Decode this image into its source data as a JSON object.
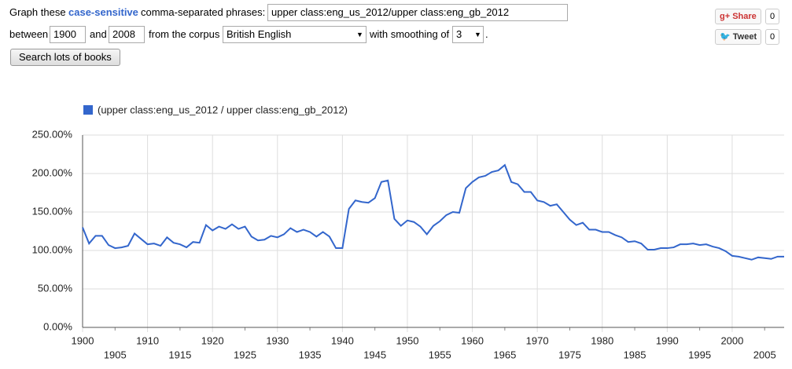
{
  "form": {
    "graph_these": "Graph these",
    "case_sensitive": "case-sensitive",
    "phrases_label": "comma-separated phrases:",
    "query": "upper class:eng_us_2012/upper class:eng_gb_2012",
    "between": "between",
    "start_year": "1900",
    "and": "and",
    "end_year": "2008",
    "corpus_label": "from the corpus",
    "corpus": "British English",
    "smoothing_label": "with smoothing of",
    "smoothing": "3",
    "period": ".",
    "search_button": "Search lots of books"
  },
  "social": {
    "share": "Share",
    "share_count": "0",
    "tweet": "Tweet",
    "tweet_count": "0"
  },
  "chart_data": {
    "type": "line",
    "x": [
      1900,
      1901,
      1902,
      1903,
      1904,
      1905,
      1906,
      1907,
      1908,
      1909,
      1910,
      1911,
      1912,
      1913,
      1914,
      1915,
      1916,
      1917,
      1918,
      1919,
      1920,
      1921,
      1922,
      1923,
      1924,
      1925,
      1926,
      1927,
      1928,
      1929,
      1930,
      1931,
      1932,
      1933,
      1934,
      1935,
      1936,
      1937,
      1938,
      1939,
      1940,
      1941,
      1942,
      1943,
      1944,
      1945,
      1946,
      1947,
      1948,
      1949,
      1950,
      1951,
      1952,
      1953,
      1954,
      1955,
      1956,
      1957,
      1958,
      1959,
      1960,
      1961,
      1962,
      1963,
      1964,
      1965,
      1966,
      1967,
      1968,
      1969,
      1970,
      1971,
      1972,
      1973,
      1974,
      1975,
      1976,
      1977,
      1978,
      1979,
      1980,
      1981,
      1982,
      1983,
      1984,
      1985,
      1986,
      1987,
      1988,
      1989,
      1990,
      1991,
      1992,
      1993,
      1994,
      1995,
      1996,
      1997,
      1998,
      1999,
      2000,
      2001,
      2002,
      2003,
      2004,
      2005,
      2006,
      2007,
      2008
    ],
    "series": [
      {
        "name": "(upper class:eng_us_2012 / upper class:eng_gb_2012)",
        "color": "#3366cc",
        "values": [
          130,
          109,
          119,
          119,
          107,
          103,
          104,
          106,
          122,
          115,
          108,
          109,
          106,
          117,
          110,
          108,
          104,
          111,
          110,
          133,
          126,
          131,
          128,
          134,
          128,
          131,
          118,
          113,
          114,
          119,
          117,
          121,
          129,
          124,
          127,
          124,
          118,
          124,
          118,
          103,
          103,
          154,
          165,
          163,
          162,
          168,
          189,
          191,
          141,
          132,
          139,
          137,
          131,
          121,
          132,
          138,
          146,
          150,
          149,
          181,
          189,
          195,
          197,
          202,
          204,
          211,
          189,
          186,
          176,
          176,
          165,
          163,
          158,
          160,
          150,
          140,
          133,
          136,
          127,
          127,
          124,
          124,
          120,
          117,
          111,
          112,
          109,
          101,
          101,
          103,
          103,
          104,
          108,
          108,
          109,
          107,
          108,
          105,
          103,
          99,
          93,
          92,
          90,
          88,
          91,
          90,
          89,
          92,
          92
        ]
      }
    ],
    "xlim": [
      1900,
      2008
    ],
    "xticks": [
      1900,
      1905,
      1910,
      1915,
      1920,
      1925,
      1930,
      1935,
      1940,
      1945,
      1950,
      1955,
      1960,
      1965,
      1970,
      1975,
      1980,
      1985,
      1990,
      1995,
      2000,
      2005
    ],
    "ylim": [
      0,
      250
    ],
    "yticks": [
      {
        "value": 0,
        "label": "0.00%"
      },
      {
        "value": 50,
        "label": "50.00%"
      },
      {
        "value": 100,
        "label": "100.00%"
      },
      {
        "value": 150,
        "label": "150.00%"
      },
      {
        "value": 200,
        "label": "200.00%"
      },
      {
        "value": 250,
        "label": "250.00%"
      }
    ],
    "grid": true
  }
}
